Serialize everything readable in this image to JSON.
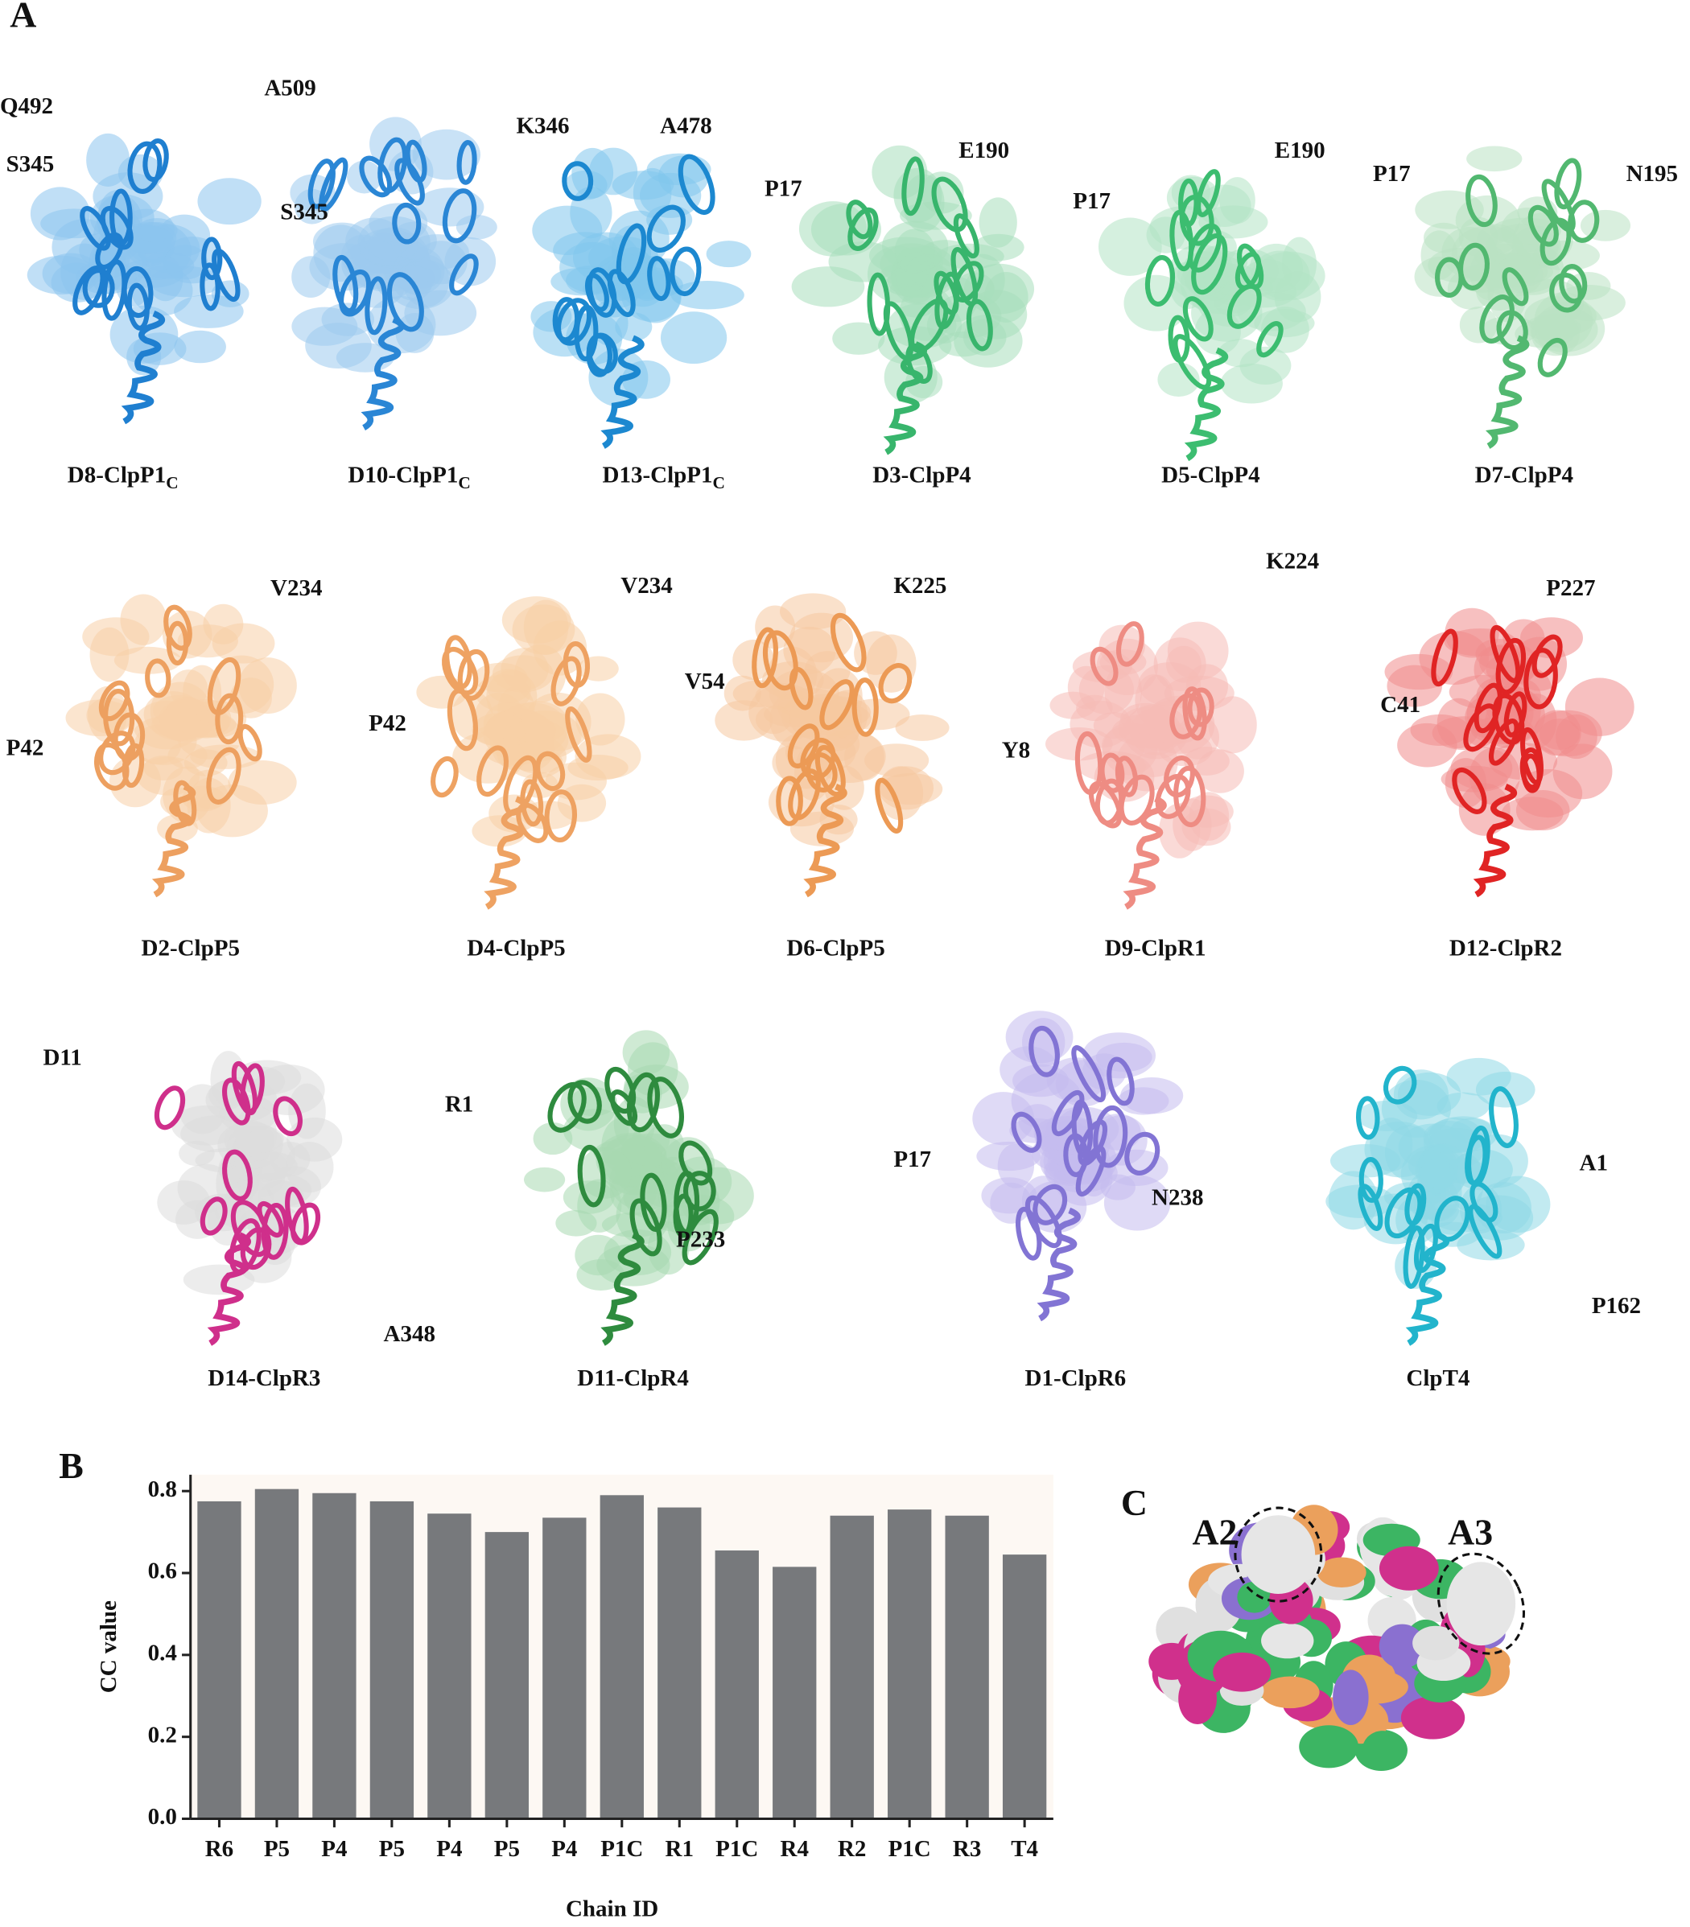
{
  "panel_labels": [
    "A",
    "B",
    "C"
  ],
  "structures": [
    {
      "name": "D8-ClpP1",
      "subscript": "C",
      "residues": [
        "Q492",
        "S345"
      ]
    },
    {
      "name": "D10-ClpP1",
      "subscript": "C",
      "residues": [
        "A509",
        "S345"
      ]
    },
    {
      "name": "D13-ClpP1",
      "subscript": "C",
      "residues": [
        "K346",
        "A478"
      ]
    },
    {
      "name": "D3-ClpP4",
      "residues": [
        "P17",
        "E190"
      ]
    },
    {
      "name": "D5-ClpP4",
      "residues": [
        "P17",
        "E190"
      ]
    },
    {
      "name": "D7-ClpP4",
      "residues": [
        "P17",
        "N195"
      ]
    },
    {
      "name": "D2-ClpP5",
      "residues": [
        "V234",
        "P42"
      ]
    },
    {
      "name": "D4-ClpP5",
      "residues": [
        "V234",
        "P42"
      ]
    },
    {
      "name": "D6-ClpP5",
      "residues": [
        "K225",
        "V54"
      ]
    },
    {
      "name": "D9-ClpR1",
      "residues": [
        "K224",
        "Y8"
      ]
    },
    {
      "name": "D12-ClpR2",
      "residues": [
        "P227",
        "C41"
      ]
    },
    {
      "name": "D14-ClpR3",
      "residues": [
        "D11",
        "A348"
      ]
    },
    {
      "name": "D11-ClpR4",
      "residues": [
        "R1",
        "P233"
      ]
    },
    {
      "name": "D1-ClpR6",
      "residues": [
        "P17",
        "N238"
      ]
    },
    {
      "name": "ClpT4",
      "residues": [
        "A1",
        "P162"
      ]
    }
  ],
  "panel_c": {
    "labels": [
      "A2",
      "A3"
    ]
  },
  "chart_data": {
    "type": "bar",
    "y_label": "CC value",
    "x_label": "Chain ID",
    "categories": [
      "R6",
      "P5",
      "P4",
      "P5",
      "P4",
      "P5",
      "P4",
      "P1C",
      "R1",
      "P1C",
      "R4",
      "R2",
      "P1C",
      "R3",
      "T4"
    ],
    "values": [
      0.775,
      0.805,
      0.795,
      0.775,
      0.745,
      0.7,
      0.735,
      0.79,
      0.76,
      0.655,
      0.615,
      0.74,
      0.755,
      0.74,
      0.645
    ],
    "color": "#77797c",
    "ylim": [
      0,
      0.84
    ],
    "yticks": [
      {
        "value": 0,
        "label": "0.0"
      },
      0.2,
      0.4,
      0.6,
      0.8
    ]
  }
}
